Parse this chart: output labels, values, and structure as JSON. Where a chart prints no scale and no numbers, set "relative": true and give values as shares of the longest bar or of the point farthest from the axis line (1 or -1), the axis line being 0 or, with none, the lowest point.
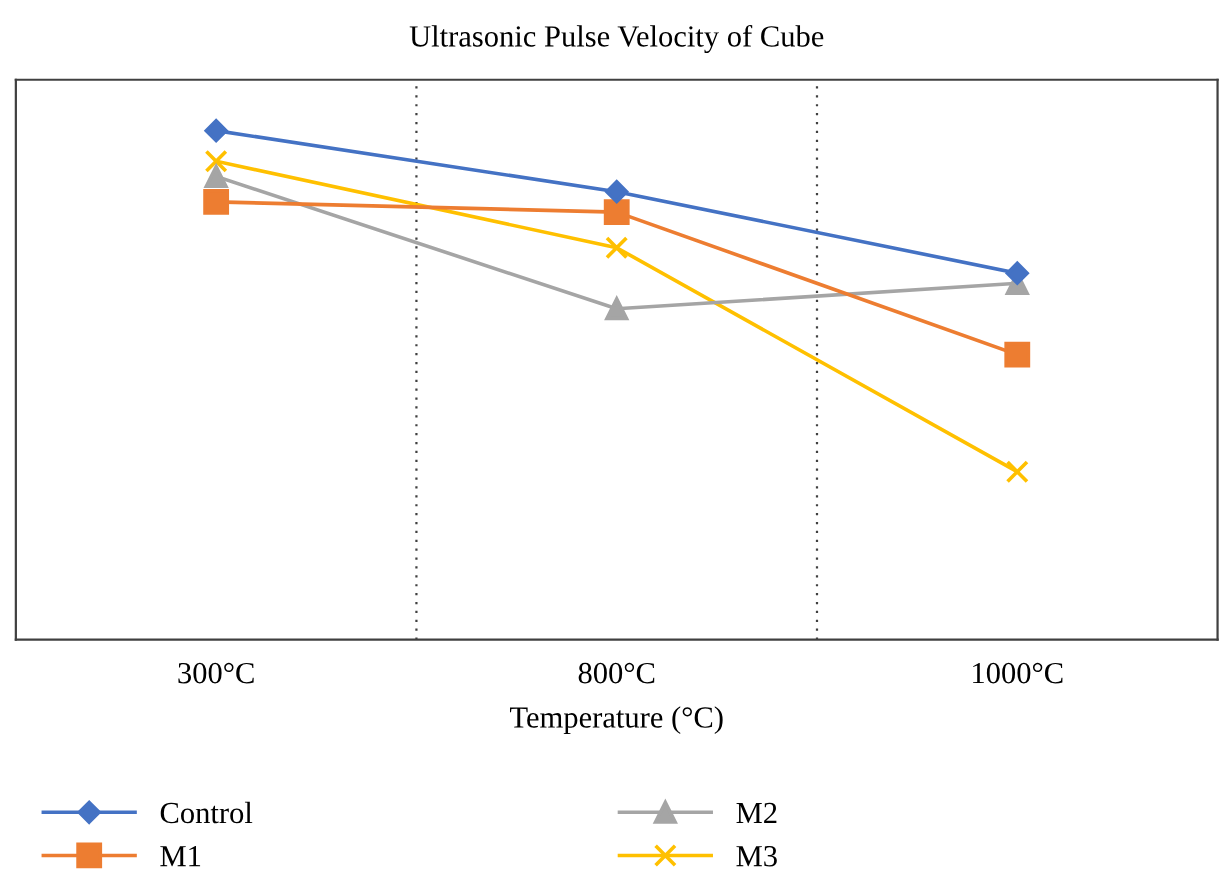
{
  "chart_data": {
    "type": "line",
    "title": "Ultrasonic Pulse Velocity of Cube",
    "xlabel": "Temperature (°C)",
    "categories": [
      "300°C",
      "800°C",
      "1000°C"
    ],
    "relative": true,
    "grid": "x",
    "legend": "bottom",
    "series": [
      {
        "name": "Control",
        "color": "#4472c4",
        "marker": "diamond",
        "values": [
          1,
          0.88,
          0.72
        ]
      },
      {
        "name": "M1",
        "color": "#ed7d31",
        "marker": "square",
        "values": [
          0.86,
          0.84,
          0.56
        ]
      },
      {
        "name": "M2",
        "color": "#a5a5a5",
        "marker": "triangle",
        "values": [
          0.91,
          0.65,
          0.7
        ]
      },
      {
        "name": "M3",
        "color": "#ffc000",
        "marker": "cross",
        "values": [
          0.94,
          0.77,
          0.33
        ]
      }
    ]
  }
}
